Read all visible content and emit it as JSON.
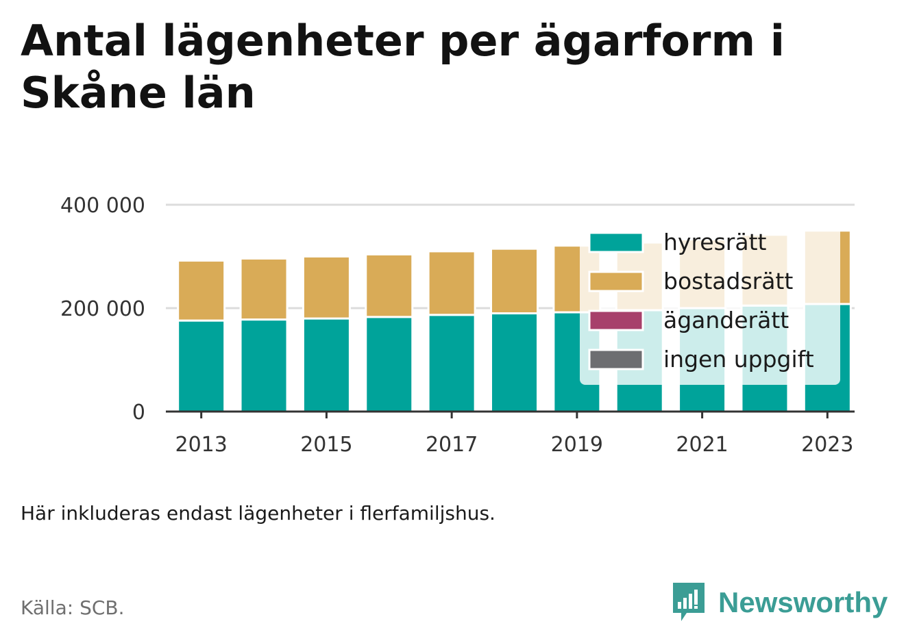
{
  "title": "Antal lägenheter per ägarform i Skåne län",
  "note": "Här inkluderas endast lägenheter i flerfamiljshus.",
  "source": "Källa: SCB.",
  "brand": {
    "name": "Newsworthy",
    "icon": "bar-chart-bubble-icon",
    "color": "#3b9d95"
  },
  "chart_data": {
    "type": "bar",
    "stacked": true,
    "categories": [
      2013,
      2014,
      2015,
      2016,
      2017,
      2018,
      2019,
      2020,
      2021,
      2022,
      2023
    ],
    "x_tick_labels": [
      "2013",
      "2015",
      "2017",
      "2019",
      "2021",
      "2023"
    ],
    "y_ticks": [
      0,
      200000,
      400000
    ],
    "y_tick_labels": [
      "0",
      "200 000",
      "400 000"
    ],
    "ylim": [
      0,
      400000
    ],
    "grid": true,
    "legend_position": "top-right",
    "series": [
      {
        "name": "hyresrätt",
        "color": "#00a39a",
        "values": [
          176000,
          178000,
          180000,
          183000,
          187000,
          190000,
          192000,
          196000,
          200000,
          205000,
          208000
        ]
      },
      {
        "name": "bostadsrätt",
        "color": "#d9ab57",
        "values": [
          116000,
          118000,
          120000,
          121000,
          123000,
          125000,
          129000,
          131000,
          133000,
          137000,
          142000
        ]
      },
      {
        "name": "äganderätt",
        "color": "#a7406b",
        "values": [
          0,
          0,
          0,
          0,
          0,
          0,
          0,
          0,
          0,
          0,
          0
        ]
      },
      {
        "name": "ingen uppgift",
        "color": "#6d6e71",
        "values": [
          0,
          0,
          0,
          0,
          0,
          0,
          0,
          0,
          0,
          0,
          0
        ]
      }
    ]
  }
}
